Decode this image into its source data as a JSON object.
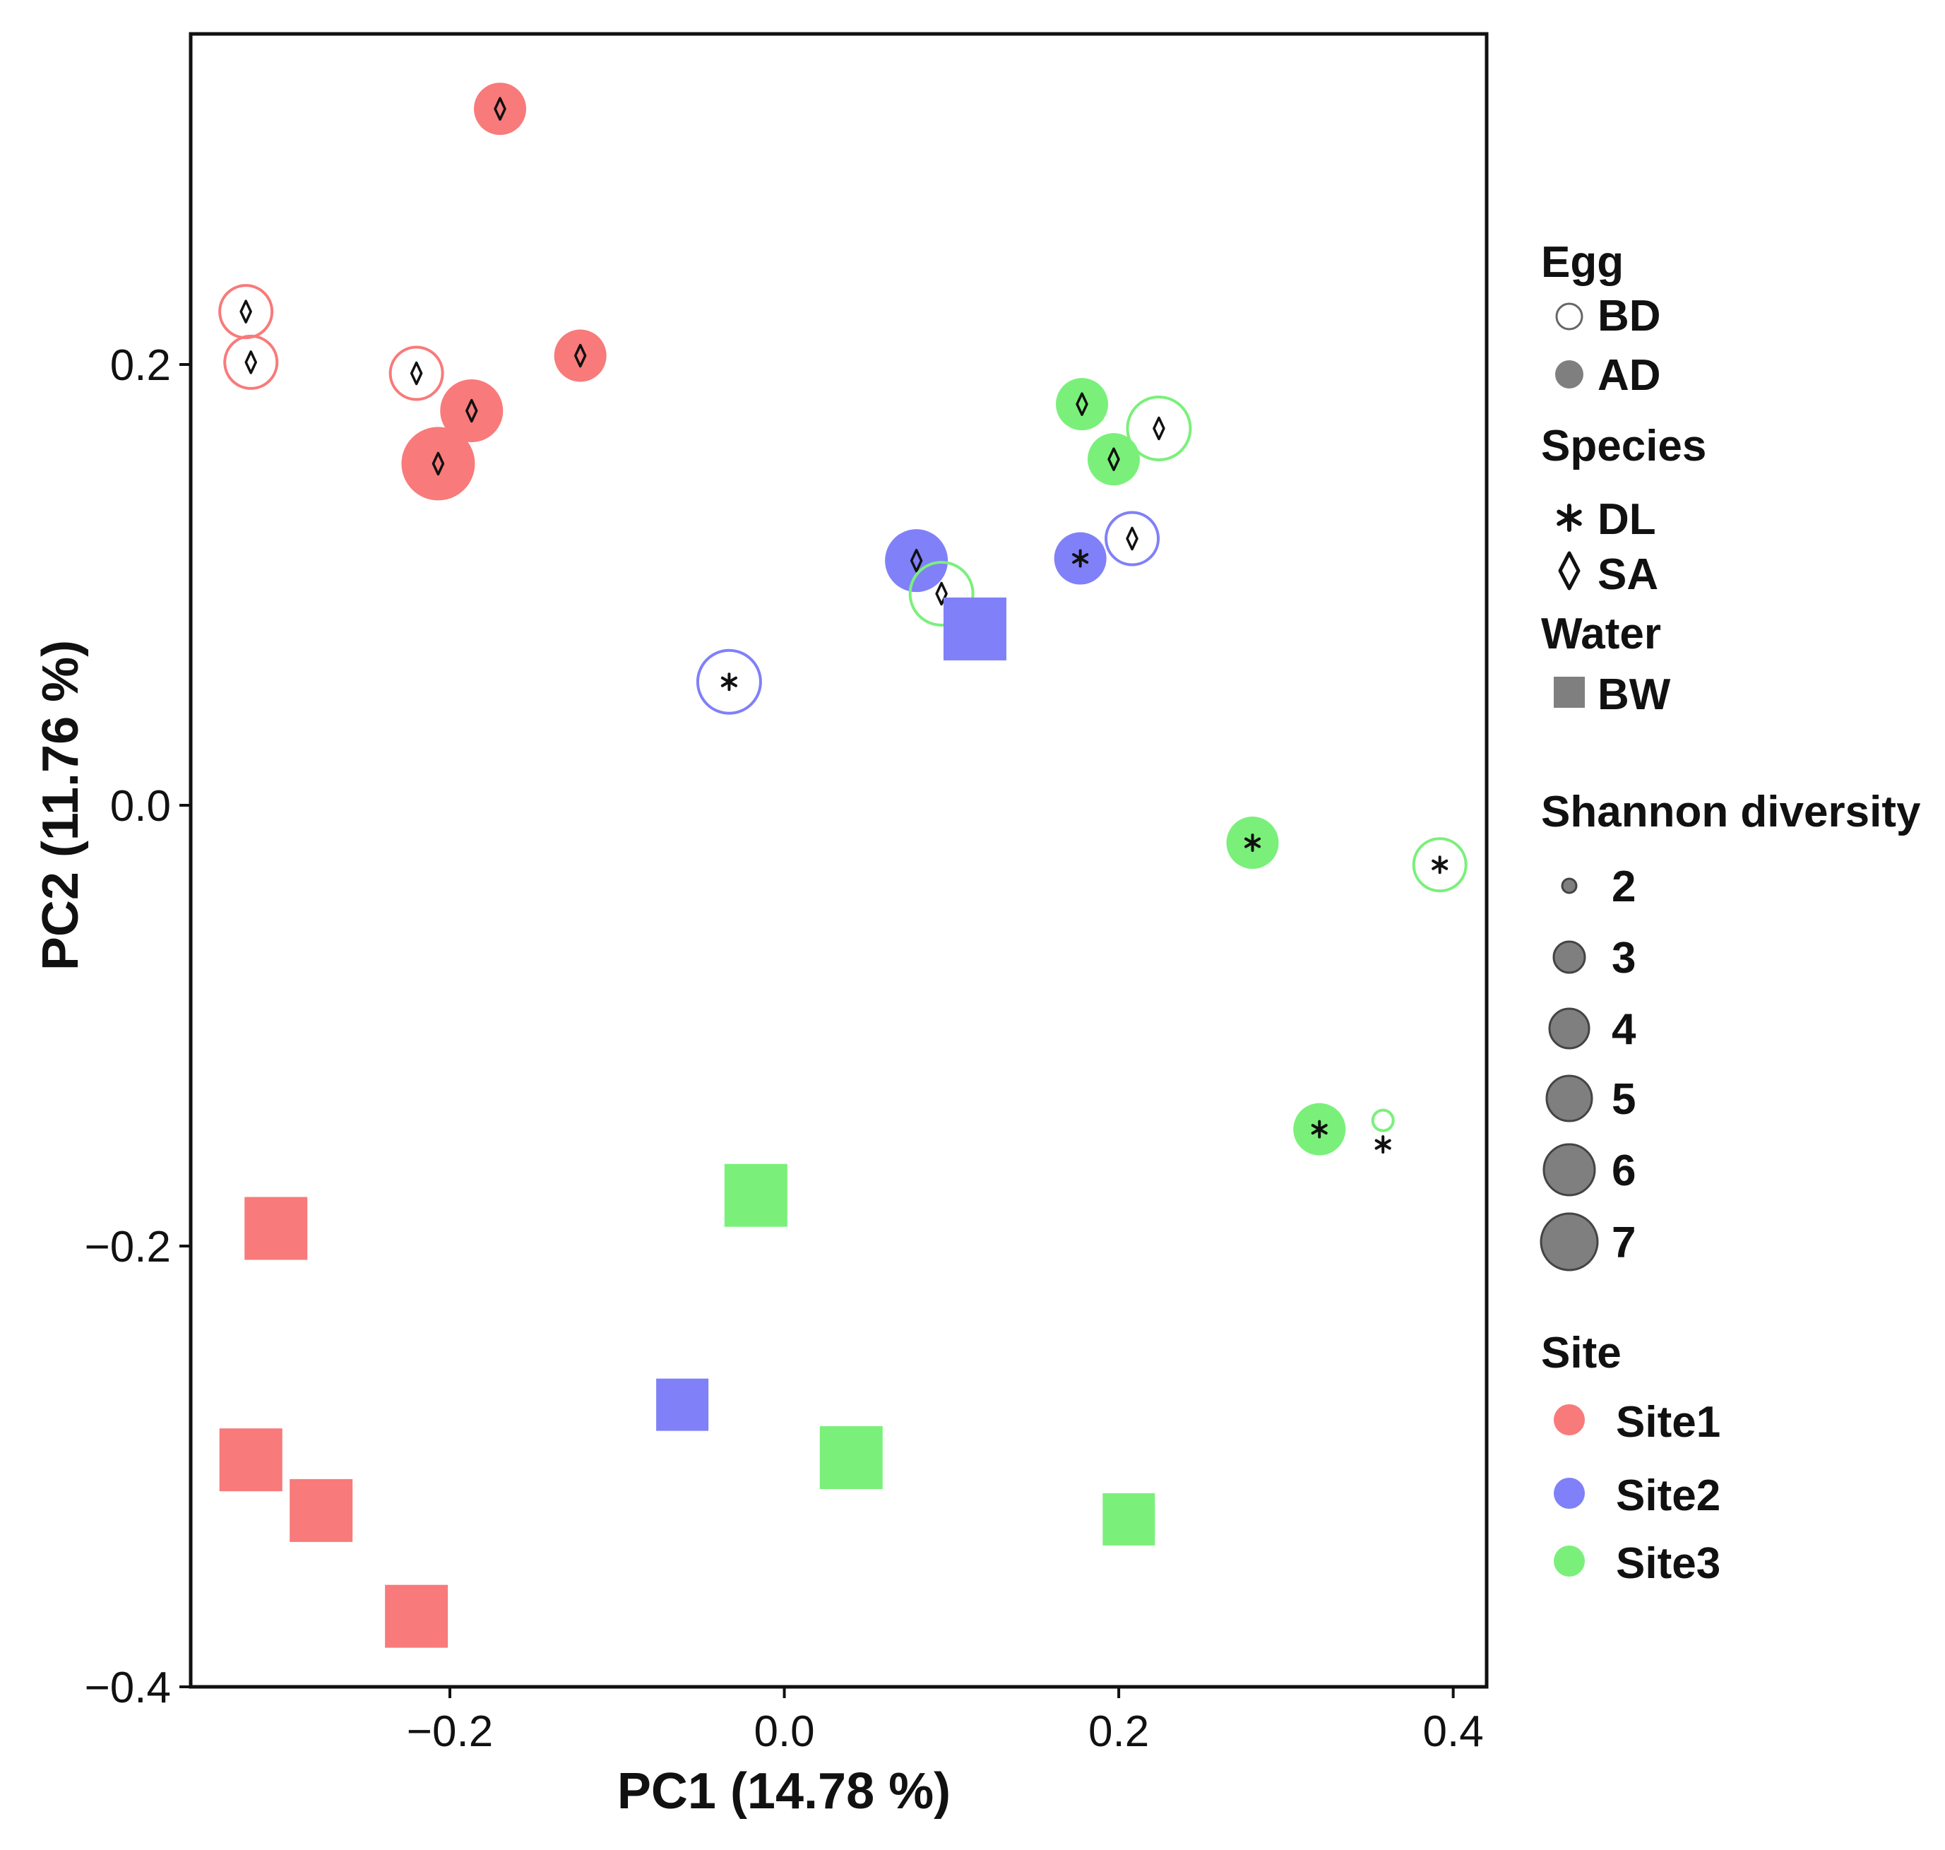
{
  "chart_data": {
    "type": "scatter",
    "xlabel": "PC1 (14.78 %)",
    "ylabel": "PC2 (11.76 %)",
    "xlim": [
      -0.355,
      0.42
    ],
    "ylim": [
      -0.4,
      0.35
    ],
    "x_ticks": [
      {
        "value": -0.2,
        "label": "−0.2"
      },
      {
        "value": 0.0,
        "label": "0.0"
      },
      {
        "value": 0.2,
        "label": "0.2"
      },
      {
        "value": 0.4,
        "label": "0.4"
      }
    ],
    "y_ticks": [
      {
        "value": -0.4,
        "label": "−0.4"
      },
      {
        "value": -0.2,
        "label": "−0.2"
      },
      {
        "value": 0.0,
        "label": "0.0"
      },
      {
        "value": 0.2,
        "label": "0.2"
      }
    ],
    "grid": false,
    "colors": {
      "Site1": "#f87a7a",
      "Site2": "#8080f8",
      "Site3": "#7af07a",
      "legend_gray": "#7f7f7f"
    },
    "points": [
      {
        "x": -0.17,
        "y": 0.316,
        "site": "Site1",
        "type": "AD",
        "species": "SA",
        "shannon": 4
      },
      {
        "x": -0.322,
        "y": 0.224,
        "site": "Site1",
        "type": "BD",
        "species": "SA",
        "shannon": 4
      },
      {
        "x": -0.319,
        "y": 0.201,
        "site": "Site1",
        "type": "BD",
        "species": "SA",
        "shannon": 4
      },
      {
        "x": -0.22,
        "y": 0.196,
        "site": "Site1",
        "type": "BD",
        "species": "SA",
        "shannon": 4
      },
      {
        "x": -0.122,
        "y": 0.204,
        "site": "Site1",
        "type": "AD",
        "species": "SA",
        "shannon": 4
      },
      {
        "x": -0.187,
        "y": 0.179,
        "site": "Site1",
        "type": "AD",
        "species": "SA",
        "shannon": 5
      },
      {
        "x": -0.207,
        "y": 0.155,
        "site": "Site1",
        "type": "AD",
        "species": "SA",
        "shannon": 6
      },
      {
        "x": 0.178,
        "y": 0.182,
        "site": "Site3",
        "type": "AD",
        "species": "SA",
        "shannon": 4
      },
      {
        "x": 0.224,
        "y": 0.171,
        "site": "Site3",
        "type": "BD",
        "species": "SA",
        "shannon": 5
      },
      {
        "x": 0.197,
        "y": 0.157,
        "site": "Site3",
        "type": "AD",
        "species": "SA",
        "shannon": 4
      },
      {
        "x": 0.208,
        "y": 0.121,
        "site": "Site2",
        "type": "BD",
        "species": "SA",
        "shannon": 4
      },
      {
        "x": 0.177,
        "y": 0.112,
        "site": "Site2",
        "type": "AD",
        "species": "DL",
        "shannon": 4
      },
      {
        "x": 0.079,
        "y": 0.111,
        "site": "Site2",
        "type": "AD",
        "species": "SA",
        "shannon": 5
      },
      {
        "x": 0.094,
        "y": 0.096,
        "site": "Site3",
        "type": "BD",
        "species": "SA",
        "shannon": 5
      },
      {
        "x": -0.033,
        "y": 0.056,
        "site": "Site2",
        "type": "BD",
        "species": "DL",
        "shannon": 5
      },
      {
        "x": 0.28,
        "y": -0.017,
        "site": "Site3",
        "type": "AD",
        "species": "DL",
        "shannon": 4
      },
      {
        "x": 0.392,
        "y": -0.027,
        "site": "Site3",
        "type": "BD",
        "species": "DL",
        "shannon": 4
      },
      {
        "x": 0.32,
        "y": -0.147,
        "site": "Site3",
        "type": "AD",
        "species": "DL",
        "shannon": 4
      },
      {
        "x": 0.358,
        "y": -0.143,
        "site": "Site3",
        "type": "BD",
        "species": "DL",
        "shannon": 1
      },
      {
        "x": 0.114,
        "y": 0.08,
        "site": "Site2",
        "type": "BW",
        "shannon": 5
      },
      {
        "x": -0.017,
        "y": -0.177,
        "site": "Site3",
        "type": "BW",
        "shannon": 5
      },
      {
        "x": -0.304,
        "y": -0.192,
        "site": "Site1",
        "type": "BW",
        "shannon": 5
      },
      {
        "x": -0.061,
        "y": -0.272,
        "site": "Site2",
        "type": "BW",
        "shannon": 4
      },
      {
        "x": 0.04,
        "y": -0.296,
        "site": "Site3",
        "type": "BW",
        "shannon": 5
      },
      {
        "x": -0.319,
        "y": -0.297,
        "site": "Site1",
        "type": "BW",
        "shannon": 5
      },
      {
        "x": -0.277,
        "y": -0.32,
        "site": "Site1",
        "type": "BW",
        "shannon": 5
      },
      {
        "x": 0.206,
        "y": -0.324,
        "site": "Site3",
        "type": "BW",
        "shannon": 4
      },
      {
        "x": -0.22,
        "y": -0.368,
        "site": "Site1",
        "type": "BW",
        "shannon": 5
      }
    ],
    "legend": {
      "placement": "right",
      "egg": {
        "title": "Egg",
        "items": [
          {
            "label": "BD",
            "style": "open"
          },
          {
            "label": "AD",
            "style": "filled"
          }
        ]
      },
      "species": {
        "title": "Species",
        "items": [
          {
            "label": "DL",
            "symbol": "*"
          },
          {
            "label": "SA",
            "symbol": "◊"
          }
        ]
      },
      "water": {
        "title": "Water",
        "items": [
          {
            "label": "BW",
            "symbol": "square"
          }
        ]
      },
      "shannon": {
        "title": "Shannon diversity",
        "values": [
          2,
          3,
          4,
          5,
          6,
          7
        ]
      },
      "site": {
        "title": "Site",
        "items": [
          "Site1",
          "Site2",
          "Site3"
        ]
      }
    }
  }
}
